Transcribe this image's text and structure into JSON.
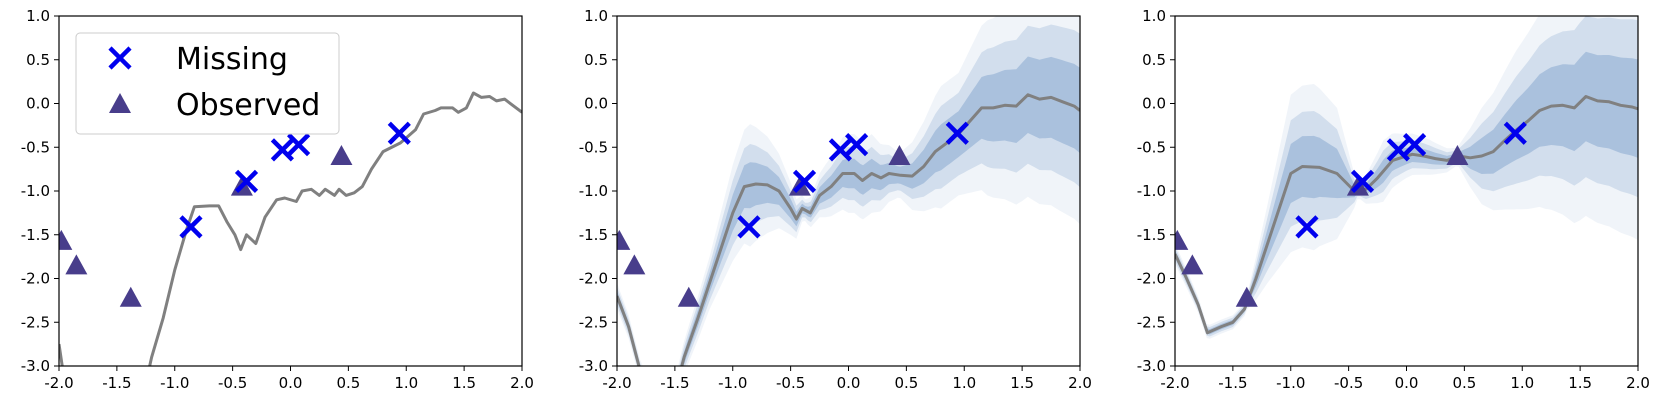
{
  "chart_data": [
    {
      "type": "line",
      "panel": "left",
      "xlim": [
        -2.0,
        2.0
      ],
      "ylim": [
        -3.0,
        1.0
      ],
      "xticks": [
        "-2.0",
        "-1.5",
        "-1.0",
        "-0.5",
        "0.0",
        "0.5",
        "1.0",
        "1.5",
        "2.0"
      ],
      "yticks": [
        "1.0",
        "0.5",
        "0.0",
        "-0.5",
        "-1.0",
        "-1.5",
        "-2.0",
        "-2.5",
        "-3.0"
      ],
      "legend": {
        "placement": "upper-left",
        "entries": [
          {
            "label": "Missing",
            "marker": "x",
            "color": "#0000ee"
          },
          {
            "label": "Observed",
            "marker": "triangle",
            "color": "#483d8b"
          }
        ]
      },
      "line_color": "#808080",
      "line": [
        [
          -2.0,
          -2.75
        ],
        [
          -1.95,
          -3.2
        ],
        [
          -1.25,
          -3.2
        ],
        [
          -1.2,
          -2.9
        ],
        [
          -1.1,
          -2.45
        ],
        [
          -1.0,
          -1.9
        ],
        [
          -0.9,
          -1.45
        ],
        [
          -0.83,
          -1.18
        ],
        [
          -0.7,
          -1.17
        ],
        [
          -0.62,
          -1.17
        ],
        [
          -0.55,
          -1.35
        ],
        [
          -0.48,
          -1.5
        ],
        [
          -0.43,
          -1.67
        ],
        [
          -0.38,
          -1.5
        ],
        [
          -0.3,
          -1.6
        ],
        [
          -0.22,
          -1.3
        ],
        [
          -0.12,
          -1.1
        ],
        [
          -0.05,
          -1.08
        ],
        [
          0.05,
          -1.12
        ],
        [
          0.1,
          -1.0
        ],
        [
          0.18,
          -0.98
        ],
        [
          0.25,
          -1.05
        ],
        [
          0.3,
          -0.98
        ],
        [
          0.38,
          -1.05
        ],
        [
          0.42,
          -0.98
        ],
        [
          0.48,
          -1.05
        ],
        [
          0.55,
          -1.02
        ],
        [
          0.62,
          -0.95
        ],
        [
          0.7,
          -0.75
        ],
        [
          0.8,
          -0.55
        ],
        [
          0.95,
          -0.45
        ],
        [
          1.08,
          -0.3
        ],
        [
          1.15,
          -0.12
        ],
        [
          1.25,
          -0.08
        ],
        [
          1.3,
          -0.05
        ],
        [
          1.4,
          -0.05
        ],
        [
          1.45,
          -0.1
        ],
        [
          1.52,
          -0.05
        ],
        [
          1.58,
          0.12
        ],
        [
          1.65,
          0.07
        ],
        [
          1.72,
          0.08
        ],
        [
          1.78,
          0.03
        ],
        [
          1.85,
          0.05
        ],
        [
          1.92,
          -0.02
        ],
        [
          2.0,
          -0.1
        ]
      ],
      "band": null,
      "missing": [
        [
          -0.86,
          -1.41
        ],
        [
          -0.38,
          -0.89
        ],
        [
          -0.07,
          -0.53
        ],
        [
          0.07,
          -0.47
        ],
        [
          0.94,
          -0.34
        ]
      ],
      "observed": [
        [
          -1.98,
          -1.57
        ],
        [
          -1.85,
          -1.85
        ],
        [
          -1.38,
          -2.22
        ],
        [
          -0.42,
          -0.95
        ],
        [
          0.44,
          -0.6
        ]
      ]
    },
    {
      "type": "line",
      "panel": "middle",
      "xlim": [
        -2.0,
        2.0
      ],
      "ylim": [
        -3.0,
        1.0
      ],
      "xticks": [
        "-2.0",
        "-1.5",
        "-1.0",
        "-0.5",
        "0.0",
        "0.5",
        "1.0",
        "1.5",
        "2.0"
      ],
      "yticks": [
        "1.0",
        "0.5",
        "0.0",
        "-0.5",
        "-1.0",
        "-1.5",
        "-2.0",
        "-2.5",
        "-3.0"
      ],
      "line_color": "#808080",
      "band_color": "#3b6fb0",
      "line": [
        [
          -2.0,
          -2.2
        ],
        [
          -1.9,
          -2.55
        ],
        [
          -1.8,
          -3.05
        ],
        [
          -1.72,
          -3.3
        ],
        [
          -1.5,
          -3.3
        ],
        [
          -1.42,
          -2.9
        ],
        [
          -1.3,
          -2.45
        ],
        [
          -1.2,
          -2.05
        ],
        [
          -1.1,
          -1.65
        ],
        [
          -1.0,
          -1.25
        ],
        [
          -0.9,
          -0.95
        ],
        [
          -0.8,
          -0.92
        ],
        [
          -0.7,
          -0.93
        ],
        [
          -0.6,
          -1.0
        ],
        [
          -0.5,
          -1.2
        ],
        [
          -0.45,
          -1.32
        ],
        [
          -0.4,
          -1.2
        ],
        [
          -0.33,
          -1.25
        ],
        [
          -0.25,
          -1.05
        ],
        [
          -0.15,
          -0.95
        ],
        [
          -0.05,
          -0.8
        ],
        [
          0.05,
          -0.8
        ],
        [
          0.12,
          -0.88
        ],
        [
          0.2,
          -0.8
        ],
        [
          0.28,
          -0.85
        ],
        [
          0.35,
          -0.8
        ],
        [
          0.45,
          -0.82
        ],
        [
          0.55,
          -0.83
        ],
        [
          0.65,
          -0.72
        ],
        [
          0.75,
          -0.55
        ],
        [
          0.85,
          -0.45
        ],
        [
          0.95,
          -0.35
        ],
        [
          1.05,
          -0.2
        ],
        [
          1.15,
          -0.05
        ],
        [
          1.25,
          -0.05
        ],
        [
          1.35,
          -0.02
        ],
        [
          1.45,
          -0.03
        ],
        [
          1.55,
          0.1
        ],
        [
          1.65,
          0.05
        ],
        [
          1.75,
          0.07
        ],
        [
          1.85,
          0.02
        ],
        [
          1.95,
          -0.03
        ],
        [
          2.0,
          -0.08
        ]
      ],
      "band": [
        [
          -2.0,
          0.15
        ],
        [
          -1.8,
          0.12
        ],
        [
          -1.5,
          0.15
        ],
        [
          -1.2,
          0.3
        ],
        [
          -1.0,
          0.55
        ],
        [
          -0.85,
          0.7
        ],
        [
          -0.7,
          0.55
        ],
        [
          -0.5,
          0.3
        ],
        [
          -0.38,
          0.12
        ],
        [
          -0.2,
          0.3
        ],
        [
          0.0,
          0.45
        ],
        [
          0.2,
          0.45
        ],
        [
          0.44,
          0.25
        ],
        [
          0.6,
          0.45
        ],
        [
          0.8,
          0.7
        ],
        [
          0.95,
          0.7
        ],
        [
          1.2,
          1.0
        ],
        [
          1.5,
          1.15
        ],
        [
          1.8,
          1.25
        ],
        [
          2.0,
          1.3
        ]
      ],
      "missing": [
        [
          -0.86,
          -1.41
        ],
        [
          -0.38,
          -0.89
        ],
        [
          -0.07,
          -0.53
        ],
        [
          0.07,
          -0.47
        ],
        [
          0.94,
          -0.34
        ]
      ],
      "observed": [
        [
          -1.98,
          -1.57
        ],
        [
          -1.85,
          -1.85
        ],
        [
          -1.38,
          -2.22
        ],
        [
          -0.42,
          -0.95
        ],
        [
          0.44,
          -0.6
        ]
      ]
    },
    {
      "type": "line",
      "panel": "right",
      "xlim": [
        -2.0,
        2.0
      ],
      "ylim": [
        -3.0,
        1.0
      ],
      "xticks": [
        "-2.0",
        "-1.5",
        "-1.0",
        "-0.5",
        "0.0",
        "0.5",
        "1.0",
        "1.5",
        "2.0"
      ],
      "yticks": [
        "1.0",
        "0.5",
        "0.0",
        "-0.5",
        "-1.0",
        "-1.5",
        "-2.0",
        "-2.5",
        "-3.0"
      ],
      "line_color": "#808080",
      "band_color": "#3b6fb0",
      "line": [
        [
          -2.0,
          -1.72
        ],
        [
          -1.9,
          -2.0
        ],
        [
          -1.8,
          -2.3
        ],
        [
          -1.72,
          -2.62
        ],
        [
          -1.6,
          -2.55
        ],
        [
          -1.5,
          -2.5
        ],
        [
          -1.4,
          -2.35
        ],
        [
          -1.3,
          -2.0
        ],
        [
          -1.2,
          -1.6
        ],
        [
          -1.1,
          -1.2
        ],
        [
          -1.0,
          -0.8
        ],
        [
          -0.9,
          -0.72
        ],
        [
          -0.75,
          -0.73
        ],
        [
          -0.6,
          -0.8
        ],
        [
          -0.45,
          -1.0
        ],
        [
          -0.35,
          -0.98
        ],
        [
          -0.25,
          -0.85
        ],
        [
          -0.12,
          -0.65
        ],
        [
          -0.05,
          -0.62
        ],
        [
          0.05,
          -0.58
        ],
        [
          0.15,
          -0.6
        ],
        [
          0.25,
          -0.63
        ],
        [
          0.35,
          -0.65
        ],
        [
          0.45,
          -0.6
        ],
        [
          0.55,
          -0.62
        ],
        [
          0.65,
          -0.6
        ],
        [
          0.75,
          -0.55
        ],
        [
          0.85,
          -0.42
        ],
        [
          0.95,
          -0.3
        ],
        [
          1.05,
          -0.2
        ],
        [
          1.15,
          -0.08
        ],
        [
          1.25,
          -0.03
        ],
        [
          1.35,
          -0.02
        ],
        [
          1.45,
          -0.05
        ],
        [
          1.55,
          0.08
        ],
        [
          1.65,
          0.03
        ],
        [
          1.75,
          0.02
        ],
        [
          1.85,
          -0.02
        ],
        [
          1.95,
          -0.04
        ],
        [
          2.0,
          -0.06
        ]
      ],
      "band": [
        [
          -2.0,
          0.12
        ],
        [
          -1.72,
          0.08
        ],
        [
          -1.38,
          0.08
        ],
        [
          -1.2,
          0.45
        ],
        [
          -1.0,
          0.9
        ],
        [
          -0.8,
          0.95
        ],
        [
          -0.6,
          0.75
        ],
        [
          -0.42,
          0.08
        ],
        [
          -0.2,
          0.35
        ],
        [
          0.0,
          0.25
        ],
        [
          0.2,
          0.2
        ],
        [
          0.44,
          0.1
        ],
        [
          0.65,
          0.55
        ],
        [
          0.94,
          0.9
        ],
        [
          1.2,
          1.15
        ],
        [
          1.5,
          1.35
        ],
        [
          2.0,
          1.5
        ]
      ],
      "missing": [
        [
          -0.86,
          -1.41
        ],
        [
          -0.38,
          -0.89
        ],
        [
          -0.07,
          -0.53
        ],
        [
          0.07,
          -0.47
        ],
        [
          0.94,
          -0.34
        ]
      ],
      "observed": [
        [
          -1.98,
          -1.57
        ],
        [
          -1.85,
          -1.85
        ],
        [
          -1.38,
          -2.22
        ],
        [
          -0.42,
          -0.95
        ],
        [
          0.44,
          -0.6
        ]
      ]
    }
  ]
}
